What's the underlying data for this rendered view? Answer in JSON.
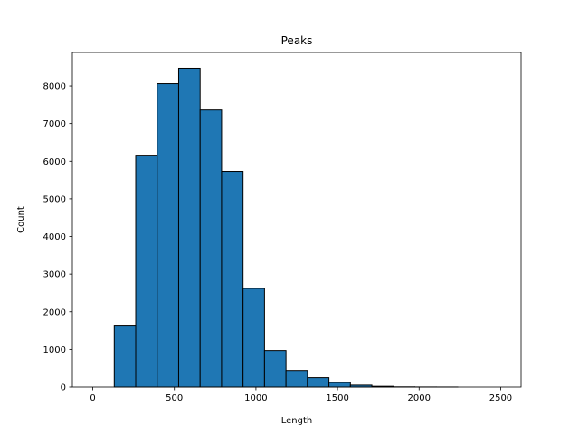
{
  "chart_data": {
    "type": "bar",
    "title": "Peaks",
    "xlabel": "Length",
    "ylabel": "Count",
    "xlim": [
      -125,
      2625
    ],
    "ylim": [
      0,
      8890
    ],
    "x_ticks": [
      0,
      500,
      1000,
      1500,
      2000,
      2500
    ],
    "y_ticks": [
      0,
      1000,
      2000,
      3000,
      4000,
      5000,
      6000,
      7000,
      8000
    ],
    "bin_edges": [
      0,
      131.6,
      263.2,
      394.7,
      526.3,
      657.9,
      789.5,
      921.1,
      1052.6,
      1184.2,
      1315.8,
      1447.4,
      1578.9,
      1710.5,
      1842.1,
      1973.7,
      2105.3,
      2236.8,
      2368.4,
      2500
    ],
    "values": [
      0,
      1620,
      6160,
      8060,
      8470,
      7360,
      5730,
      2620,
      970,
      440,
      250,
      120,
      50,
      20,
      5,
      2,
      1,
      0,
      0
    ],
    "bar_color": "#1f77b4",
    "edge_color": "#000000",
    "grid": false,
    "legend": "none"
  }
}
